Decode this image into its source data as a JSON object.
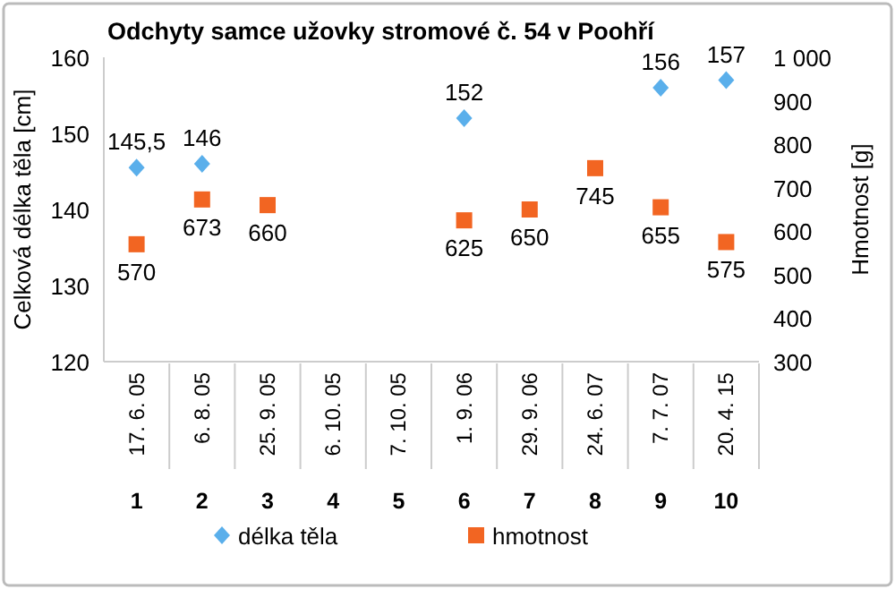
{
  "chart_data": {
    "type": "scatter",
    "title": "Odchyty samce užovky stromové č. 54 v Poohří",
    "ylabel": "Celková délka těla [cm]",
    "y2label": "Hmotnost [g]",
    "categories": [
      "17. 6. 05\n1",
      "6. 8. 05\n2",
      "25. 9. 05\n3",
      "6. 10. 05\n4",
      "7. 10. 05\n5",
      "1. 9. 06\n6",
      "29. 9. 06\n7",
      "24. 6. 07\n8",
      "7. 7. 07\n9",
      "20. 4. 15\n10"
    ],
    "series": [
      {
        "name": "délka těla",
        "color": "#5aafeb",
        "marker": "diamond",
        "values": [
          145.5,
          146,
          null,
          null,
          null,
          152,
          null,
          null,
          156,
          157
        ],
        "value_labels": [
          "145,5",
          "146",
          null,
          null,
          null,
          "152",
          null,
          null,
          "156",
          "157"
        ]
      },
      {
        "name": "hmotnost",
        "color": "#f26522",
        "marker": "square",
        "axis": "y2",
        "values": [
          570,
          673,
          660,
          null,
          null,
          625,
          650,
          745,
          655,
          575
        ],
        "value_labels": [
          "570",
          "673",
          "660",
          null,
          null,
          "625",
          "650",
          "745",
          "655",
          "575"
        ]
      }
    ],
    "ylim": [
      120,
      160
    ],
    "yticks": [
      120,
      130,
      140,
      150,
      160
    ],
    "y2lim": [
      300,
      1000
    ],
    "y2ticks": [
      300,
      400,
      500,
      600,
      700,
      800,
      900,
      {
        "value": 1000,
        "label": "1 000"
      }
    ],
    "legend": "bottom"
  }
}
